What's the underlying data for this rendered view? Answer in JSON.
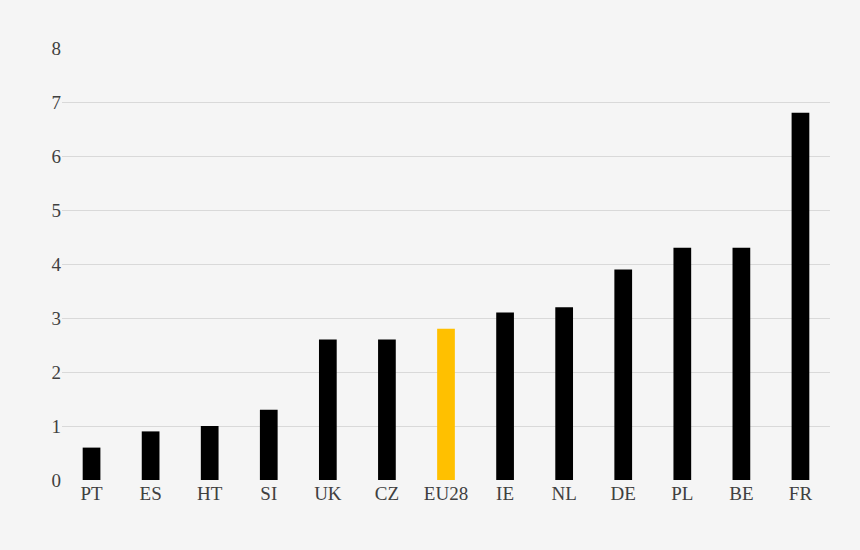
{
  "chart_data": {
    "type": "bar",
    "categories": [
      "PT",
      "ES",
      "HT",
      "SI",
      "UK",
      "CZ",
      "EU28",
      "IE",
      "NL",
      "DE",
      "PL",
      "BE",
      "FR"
    ],
    "values": [
      0.6,
      0.9,
      1.0,
      1.3,
      2.6,
      2.6,
      2.8,
      3.1,
      3.2,
      3.9,
      4.3,
      4.3,
      6.8
    ],
    "colors": [
      "#000000",
      "#000000",
      "#000000",
      "#000000",
      "#000000",
      "#000000",
      "#ffc000",
      "#000000",
      "#000000",
      "#000000",
      "#000000",
      "#000000",
      "#000000"
    ],
    "ylim": [
      0,
      8
    ],
    "yticks": [
      0,
      1,
      2,
      3,
      4,
      5,
      6,
      7,
      8
    ],
    "grid": true
  }
}
